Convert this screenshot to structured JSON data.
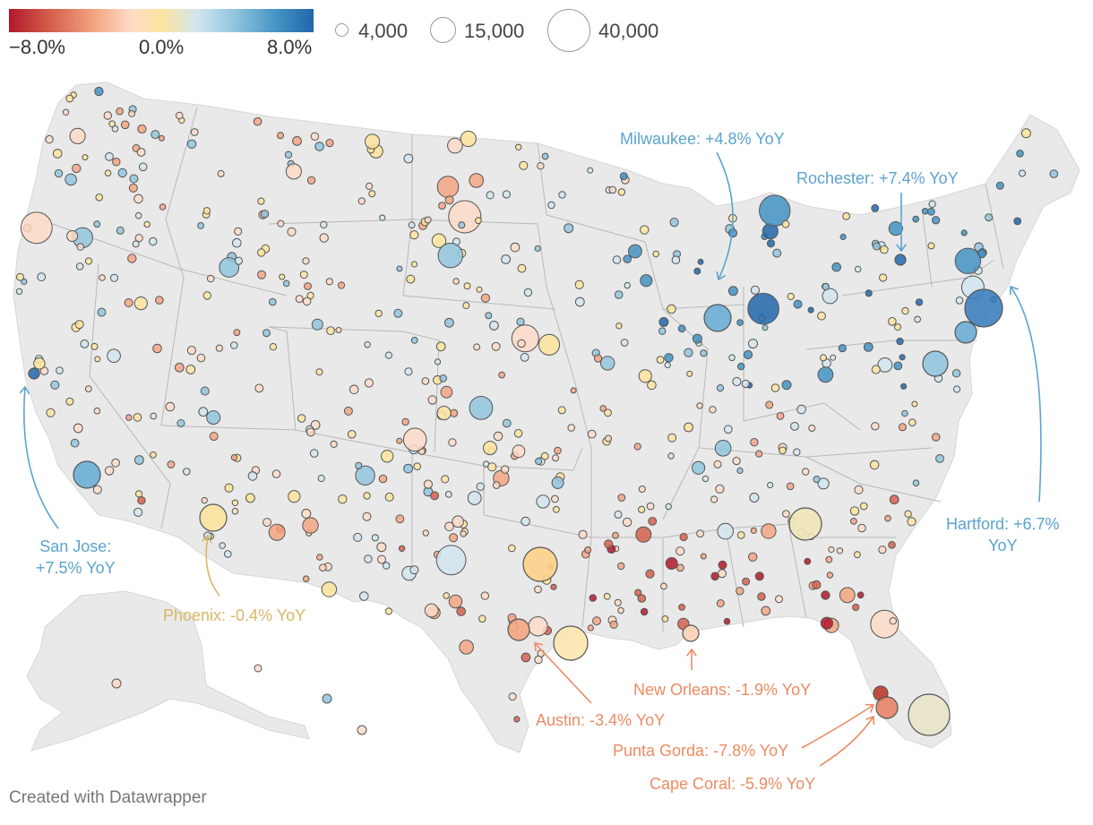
{
  "legend": {
    "color_scale": {
      "min_label": "−8.0%",
      "mid_label": "0.0%",
      "max_label": "8.0%",
      "stops": [
        "#b2182b",
        "#d6604d",
        "#f4a582",
        "#fddbc7",
        "#fde49e",
        "#d1e5f0",
        "#92c5de",
        "#4393c3",
        "#2166ac"
      ]
    },
    "size_scale": [
      {
        "label": "4,000"
      },
      {
        "label": "15,000"
      },
      {
        "label": "40,000"
      }
    ]
  },
  "annotations": [
    {
      "name": "milwaukee",
      "text": "Milwaukee: +4.8% YoY",
      "color": "#5ba3cf"
    },
    {
      "name": "rochester",
      "text": "Rochester: +7.4% YoY",
      "color": "#5ba3cf"
    },
    {
      "name": "san-jose",
      "text": "San Jose:\n+7.5% YoY",
      "color": "#5ba3cf"
    },
    {
      "name": "phoenix",
      "text": "Phoenix: -0.4% YoY",
      "color": "#d9b665"
    },
    {
      "name": "hartford",
      "text": "Hartford: +6.7%\nYoY",
      "color": "#5ba3cf"
    },
    {
      "name": "new-orleans",
      "text": "New Orleans: -1.9% YoY",
      "color": "#ec8b62"
    },
    {
      "name": "austin",
      "text": "Austin: -3.4% YoY",
      "color": "#ec8b62"
    },
    {
      "name": "punta-gorda",
      "text": "Punta Gorda: -7.8% YoY",
      "color": "#ec8b62"
    },
    {
      "name": "cape-coral",
      "text": "Cape Coral: -5.9% YoY",
      "color": "#ec8b62"
    }
  ],
  "colors": {
    "land": "#e9e9e9",
    "border": "#b8b8b8",
    "marker_stroke": "#555555"
  },
  "footer": "Created with Datawrapper"
}
